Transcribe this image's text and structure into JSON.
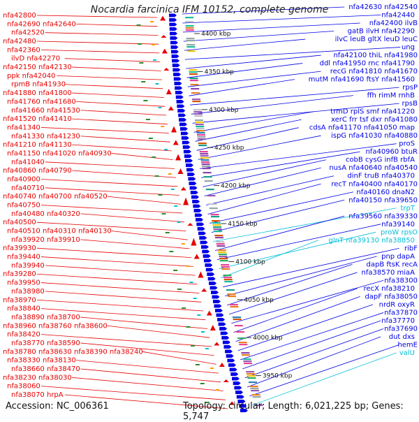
{
  "header": {
    "title": "Nocardia farcinica IFM 10152, complete genome"
  },
  "footer": {
    "accession": "Accession: NC_006361",
    "summary": "Topology: circular; Length: 6,021,225 bp; Genes: 5,747"
  },
  "colors": {
    "forward_genes": "#e60000",
    "reverse_genes": "#0000e6",
    "rna_genes": "#00bfd8",
    "backbone": "#7a7a7a",
    "ticks": "#2a8a2a"
  },
  "ruler": [
    "4400 kbp",
    "4350 kbp",
    "4300 kbp",
    "4250 kbp",
    "4200 kbp",
    "4150 kbp",
    "4100 kbp",
    "4050 kbp",
    "4000 kbp",
    "3950 kbp"
  ],
  "left_labels": [
    [
      "nfa42800"
    ],
    [
      "nfa42690",
      "nfa42640"
    ],
    [
      "nfa42520"
    ],
    [
      "nfa42480"
    ],
    [
      "nfa42360"
    ],
    [
      "ilvD",
      "nfa42270"
    ],
    [
      "nfa42150",
      "nfa42130"
    ],
    [
      "ppk",
      "nfa42040"
    ],
    [
      "rpmB",
      "nfa41930"
    ],
    [
      "nfa41880",
      "nfa41800"
    ],
    [
      "nfa41760",
      "nfa41680"
    ],
    [
      "nfa41660",
      "nfa41530"
    ],
    [
      "nfa41520",
      "nfa41410"
    ],
    [
      "nfa41340"
    ],
    [
      "nfa41330",
      "nfa41230"
    ],
    [
      "nfa41210",
      "nfa41130"
    ],
    [
      "nfa41150",
      "nfa41020",
      "nfa40930"
    ],
    [
      "nfa41040"
    ],
    [
      "nfa40860",
      "nfa40790"
    ],
    [
      "nfa40900"
    ],
    [
      "nfa40710"
    ],
    [
      "nfa40740",
      "nfa40700",
      "nfa40520"
    ],
    [
      "nfa40750"
    ],
    [
      "nfa40480",
      "nfa40320"
    ],
    [
      "nfa40500"
    ],
    [
      "nfa40510",
      "nfa40310",
      "nfa40130"
    ],
    [
      "nfa39920",
      "nfa39910"
    ],
    [
      "nfa39930"
    ],
    [
      "nfa39440"
    ],
    [
      "nfa39940"
    ],
    [
      "nfa39280"
    ],
    [
      "nfa39950"
    ],
    [
      "nfa38980"
    ],
    [
      "nfa38970"
    ],
    [
      "nfa38840"
    ],
    [
      "nfa38890",
      "nfa38700"
    ],
    [
      "nfa38960",
      "nfa38760",
      "nfa38600"
    ],
    [
      "nfa38420"
    ],
    [
      "nfa38770",
      "nfa38590"
    ],
    [
      "nfa38780",
      "nfa38630",
      "nfa38390",
      "nfa38240"
    ],
    [
      "nfa38330",
      "nfa38130"
    ],
    [
      "nfa38660",
      "nfa38470"
    ],
    [
      "nfa38230",
      "nfa38030"
    ],
    [
      "nfa38060"
    ],
    [
      "nfa38070",
      "hrpA"
    ]
  ],
  "right_labels": [
    [
      "nfa42630",
      "nfa42540"
    ],
    [
      "nfa42440"
    ],
    [
      "nfa42400",
      "ilvB"
    ],
    [
      "gatB",
      "ilvH",
      "nfa42290"
    ],
    [
      "ilvC",
      "leuB",
      "gltX",
      "leuD",
      "leuC"
    ],
    [
      "ung"
    ],
    [
      "nfa42100",
      "thiL",
      "nfa41980"
    ],
    [
      "ddl",
      "nfa41950",
      "rnc",
      "nfa41790"
    ],
    [
      "recG",
      "nfa41810",
      "nfa41670"
    ],
    [
      "mutM",
      "nfa41690",
      "ftsY",
      "nfa41560"
    ],
    [
      "rpsP"
    ],
    [
      "ffh",
      "rimM",
      "rnhB"
    ],
    [
      "rpsB"
    ],
    [
      "trmD",
      "rplS",
      "smf",
      "nfa41220"
    ],
    [
      "xerC",
      "frr",
      "tsf",
      "dxr",
      "nfa41080"
    ],
    [
      "cdsA",
      "nfa41170",
      "nfa41050",
      "map"
    ],
    [
      "ispG",
      "nfa41030",
      "nfa40880"
    ],
    [
      "proS"
    ],
    [
      "nfa40960",
      "btuR"
    ],
    [
      "cobB",
      "cysG",
      "infB",
      "rbfA"
    ],
    [
      "nusA",
      "nfa40640",
      "nfa40540"
    ],
    [
      "dinF",
      "truB",
      "nfa40370"
    ],
    [
      "recT",
      "nfa40400",
      "nfa40170"
    ],
    [
      "nfa40160",
      "dnaN2"
    ],
    [
      "nfa40150",
      "nfa39650"
    ],
    [
      "trpT"
    ],
    [
      "nfa39560",
      "nfa39330"
    ],
    [
      "nfa39140"
    ],
    [
      "proW",
      "rpsO"
    ],
    [
      "glnT",
      "nfa39130",
      "nfa38850"
    ],
    [
      "ribF"
    ],
    [
      "pnp",
      "dapA"
    ],
    [
      "dapB",
      "ftsK",
      "recA"
    ],
    [
      "nfa38570",
      "miaA"
    ],
    [
      "nfa38300"
    ],
    [
      "recX",
      "nfa38210"
    ],
    [
      "dapF",
      "nfa38050"
    ],
    [
      "nrdR",
      "oxyR"
    ],
    [
      "nfa37870"
    ],
    [
      "nfa37770"
    ],
    [
      "nfa37690"
    ],
    [
      "dut",
      "dxs"
    ],
    [
      "hemE"
    ],
    [
      "valU"
    ]
  ]
}
